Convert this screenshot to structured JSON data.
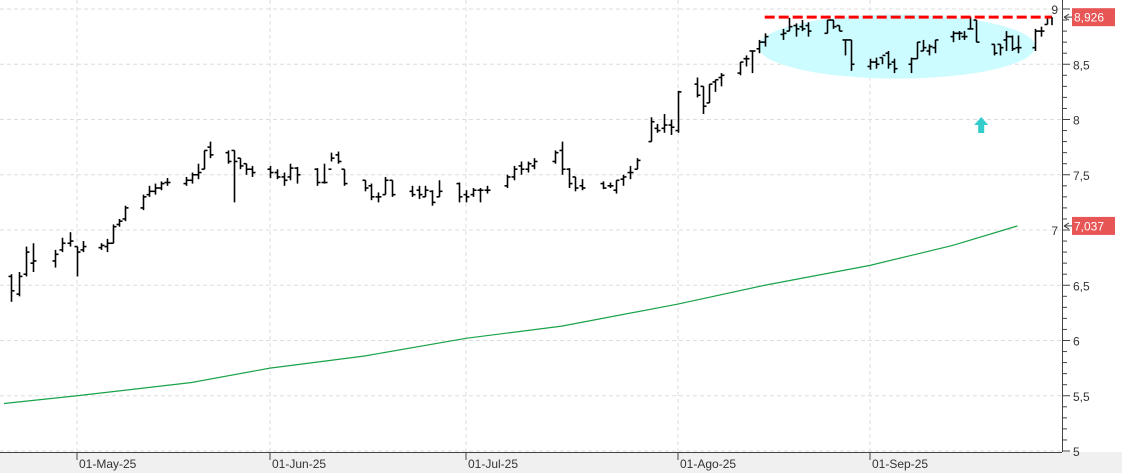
{
  "chart_data": {
    "type": "ohlc",
    "title": "",
    "xlabel": "",
    "ylabel": "",
    "ylim": [
      5,
      9
    ],
    "y_ticks": [
      "5",
      "5,5",
      "6",
      "6,5",
      "7",
      "7,5",
      "8",
      "8,5",
      "9"
    ],
    "x_ticks": [
      {
        "date": "2025-05-01",
        "label": "01-May-25"
      },
      {
        "date": "2025-06-02",
        "label": "01-Jun-25"
      },
      {
        "date": "2025-07-01",
        "label": "01-Jul-25"
      },
      {
        "date": "2025-08-01",
        "label": "01-Ago-25"
      },
      {
        "date": "2025-09-01",
        "label": "01-Sep-25"
      }
    ],
    "grid": true,
    "colors": {
      "bars": "#000000",
      "moving_average": "#1aa34a",
      "resistance": "#ff0000",
      "zone": "#ccfcff",
      "arrow": "#33cccc",
      "price_tag": "#e85555"
    },
    "price_tags": [
      {
        "value": 8.926,
        "label": "8,926"
      },
      {
        "value": 7.037,
        "label": "7,037"
      }
    ],
    "resistance_line": {
      "value": 8.926,
      "from": "2025-08-15",
      "to": "2025-09-26",
      "style": "dashed"
    },
    "consolidation_zone": {
      "from": "2025-08-14",
      "to": "2025-09-29",
      "high": 8.95,
      "low": 8.37
    },
    "arrow": {
      "date": "2025-09-19",
      "value": 7.95,
      "direction": "up"
    },
    "moving_average": [
      [
        "2025-04-21",
        5.43
      ],
      [
        "2025-05-01",
        5.5
      ],
      [
        "2025-05-20",
        5.62
      ],
      [
        "2025-06-02",
        5.75
      ],
      [
        "2025-06-16",
        5.86
      ],
      [
        "2025-07-01",
        6.02
      ],
      [
        "2025-07-15",
        6.13
      ],
      [
        "2025-08-01",
        6.33
      ],
      [
        "2025-08-15",
        6.5
      ],
      [
        "2025-09-01",
        6.68
      ],
      [
        "2025-09-15",
        6.86
      ],
      [
        "2025-09-26",
        7.037
      ]
    ],
    "bars": [
      [
        "2025-04-22",
        6.58,
        6.6,
        6.35,
        6.45
      ],
      [
        "2025-04-23",
        6.42,
        6.62,
        6.4,
        6.58
      ],
      [
        "2025-04-24",
        6.6,
        6.85,
        6.58,
        6.8
      ],
      [
        "2025-04-25",
        6.7,
        6.88,
        6.62,
        6.72
      ],
      [
        "2025-04-28",
        6.72,
        6.82,
        6.66,
        6.78
      ],
      [
        "2025-04-29",
        6.82,
        6.93,
        6.8,
        6.88
      ],
      [
        "2025-04-30",
        6.88,
        6.98,
        6.85,
        6.9
      ],
      [
        "2025-05-01",
        6.85,
        6.85,
        6.58,
        6.8
      ],
      [
        "2025-05-02",
        6.82,
        6.9,
        6.8,
        6.85
      ],
      [
        "2025-05-05",
        6.84,
        6.88,
        6.82,
        6.86
      ],
      [
        "2025-05-06",
        6.85,
        6.92,
        6.8,
        6.88
      ],
      [
        "2025-05-07",
        6.88,
        7.05,
        6.88,
        7.03
      ],
      [
        "2025-05-08",
        7.05,
        7.1,
        7.03,
        7.08
      ],
      [
        "2025-05-09",
        7.1,
        7.22,
        7.08,
        7.2
      ],
      [
        "2025-05-12",
        7.2,
        7.32,
        7.18,
        7.3
      ],
      [
        "2025-05-13",
        7.32,
        7.4,
        7.3,
        7.35
      ],
      [
        "2025-05-14",
        7.35,
        7.42,
        7.32,
        7.38
      ],
      [
        "2025-05-15",
        7.38,
        7.44,
        7.36,
        7.42
      ],
      [
        "2025-05-16",
        7.43,
        7.47,
        7.4,
        7.43
      ],
      [
        "2025-05-19",
        7.42,
        7.48,
        7.4,
        7.45
      ],
      [
        "2025-05-20",
        7.45,
        7.52,
        7.42,
        7.5
      ],
      [
        "2025-05-21",
        7.5,
        7.6,
        7.46,
        7.52
      ],
      [
        "2025-05-22",
        7.55,
        7.72,
        7.55,
        7.72
      ],
      [
        "2025-05-23",
        7.75,
        7.8,
        7.65,
        7.68
      ],
      [
        "2025-05-26",
        7.7,
        7.72,
        7.6,
        7.62
      ],
      [
        "2025-05-27",
        7.72,
        7.72,
        7.25,
        7.62
      ],
      [
        "2025-05-28",
        7.65,
        7.65,
        7.55,
        7.58
      ],
      [
        "2025-05-29",
        7.6,
        7.6,
        7.5,
        7.55
      ],
      [
        "2025-05-30",
        7.55,
        7.58,
        7.48,
        7.52
      ],
      [
        "2025-06-02",
        7.55,
        7.58,
        7.47,
        7.52
      ],
      [
        "2025-06-03",
        7.52,
        7.55,
        7.46,
        7.48
      ],
      [
        "2025-06-04",
        7.48,
        7.52,
        7.4,
        7.45
      ],
      [
        "2025-06-05",
        7.48,
        7.6,
        7.45,
        7.56
      ],
      [
        "2025-06-06",
        7.56,
        7.57,
        7.42,
        7.5
      ],
      [
        "2025-06-09",
        7.55,
        7.56,
        7.4,
        7.43
      ],
      [
        "2025-06-10",
        7.43,
        7.6,
        7.42,
        7.43
      ],
      [
        "2025-06-11",
        7.55,
        7.7,
        7.62,
        7.65
      ],
      [
        "2025-06-12",
        7.68,
        7.71,
        7.6,
        7.62
      ],
      [
        "2025-06-13",
        7.55,
        7.55,
        7.4,
        7.42
      ],
      [
        "2025-06-16",
        7.45,
        7.45,
        7.35,
        7.38
      ],
      [
        "2025-06-17",
        7.4,
        7.42,
        7.27,
        7.3
      ],
      [
        "2025-06-18",
        7.3,
        7.34,
        7.25,
        7.3
      ],
      [
        "2025-06-19",
        7.32,
        7.48,
        7.32,
        7.45
      ],
      [
        "2025-06-20",
        7.45,
        7.45,
        7.3,
        7.32
      ],
      [
        "2025-06-23",
        7.35,
        7.4,
        7.3,
        7.32
      ],
      [
        "2025-06-24",
        7.36,
        7.4,
        7.28,
        7.32
      ],
      [
        "2025-06-25",
        7.3,
        7.4,
        7.3,
        7.36
      ],
      [
        "2025-06-26",
        7.35,
        7.36,
        7.22,
        7.25
      ],
      [
        "2025-06-27",
        7.3,
        7.45,
        7.3,
        7.35
      ],
      [
        "2025-06-30",
        7.42,
        7.43,
        7.25,
        7.3
      ],
      [
        "2025-07-01",
        7.32,
        7.36,
        7.25,
        7.3
      ],
      [
        "2025-07-02",
        7.32,
        7.38,
        7.3,
        7.36
      ],
      [
        "2025-07-03",
        7.36,
        7.38,
        7.25,
        7.36
      ],
      [
        "2025-07-04",
        7.36,
        7.4,
        7.33,
        7.36
      ],
      [
        "2025-07-07",
        7.4,
        7.5,
        7.38,
        7.48
      ],
      [
        "2025-07-08",
        7.48,
        7.58,
        7.45,
        7.55
      ],
      [
        "2025-07-09",
        7.58,
        7.62,
        7.5,
        7.55
      ],
      [
        "2025-07-10",
        7.55,
        7.62,
        7.52,
        7.6
      ],
      [
        "2025-07-11",
        7.58,
        7.65,
        7.55,
        7.62
      ],
      [
        "2025-07-14",
        7.62,
        7.72,
        7.6,
        7.7
      ],
      [
        "2025-07-15",
        7.72,
        7.8,
        7.5,
        7.55
      ],
      [
        "2025-07-16",
        7.55,
        7.56,
        7.38,
        7.42
      ],
      [
        "2025-07-17",
        7.48,
        7.48,
        7.35,
        7.38
      ],
      [
        "2025-07-18",
        7.4,
        7.46,
        7.36,
        7.38
      ],
      [
        "2025-07-21",
        7.42,
        7.44,
        7.37,
        7.38
      ],
      [
        "2025-07-22",
        7.4,
        7.43,
        7.38,
        7.4
      ],
      [
        "2025-07-23",
        7.36,
        7.45,
        7.33,
        7.45
      ],
      [
        "2025-07-24",
        7.46,
        7.5,
        7.4,
        7.48
      ],
      [
        "2025-07-25",
        7.52,
        7.58,
        7.46,
        7.52
      ],
      [
        "2025-07-26",
        7.55,
        7.65,
        7.55,
        7.63
      ],
      [
        "2025-07-28",
        7.8,
        8.02,
        7.8,
        7.98
      ],
      [
        "2025-07-29",
        7.92,
        7.96,
        7.88,
        7.9
      ],
      [
        "2025-07-30",
        7.92,
        8.05,
        7.88,
        7.95
      ],
      [
        "2025-07-31",
        7.95,
        8.0,
        7.86,
        7.93
      ],
      [
        "2025-08-01",
        7.9,
        8.26,
        7.88,
        8.25
      ],
      [
        "2025-08-04",
        8.32,
        8.38,
        8.2,
        8.22
      ],
      [
        "2025-08-05",
        8.3,
        8.3,
        8.05,
        8.12
      ],
      [
        "2025-08-06",
        8.15,
        8.32,
        8.15,
        8.32
      ],
      [
        "2025-08-07",
        8.34,
        8.36,
        8.25,
        8.36
      ],
      [
        "2025-08-08",
        8.38,
        8.42,
        8.3,
        8.4
      ],
      [
        "2025-08-11",
        8.42,
        8.52,
        8.4,
        8.52
      ],
      [
        "2025-08-12",
        8.55,
        8.58,
        8.48,
        8.55
      ],
      [
        "2025-08-13",
        8.62,
        8.62,
        8.42,
        8.62
      ],
      [
        "2025-08-14",
        8.64,
        8.72,
        8.6,
        8.7
      ],
      [
        "2025-08-15",
        8.7,
        8.78,
        8.66,
        8.75
      ],
      [
        "2025-08-18",
        8.77,
        8.82,
        8.72,
        8.78
      ],
      [
        "2025-08-19",
        8.8,
        8.92,
        8.8,
        8.84
      ],
      [
        "2025-08-20",
        8.85,
        8.87,
        8.75,
        8.82
      ],
      [
        "2025-08-21",
        8.84,
        8.9,
        8.8,
        8.82
      ],
      [
        "2025-08-22",
        8.85,
        8.88,
        8.75,
        8.8
      ],
      [
        "2025-08-25",
        8.78,
        8.9,
        8.78,
        8.9
      ],
      [
        "2025-08-26",
        8.9,
        8.9,
        8.82,
        8.84
      ],
      [
        "2025-08-27",
        8.85,
        8.85,
        8.8,
        8.8
      ],
      [
        "2025-08-28",
        8.72,
        8.72,
        8.58,
        8.72
      ],
      [
        "2025-08-29",
        8.72,
        8.72,
        8.44,
        8.5
      ],
      [
        "2025-09-01",
        8.48,
        8.55,
        8.45,
        8.52
      ],
      [
        "2025-09-02",
        8.52,
        8.56,
        8.46,
        8.5
      ],
      [
        "2025-09-03",
        8.56,
        8.56,
        8.5,
        8.58
      ],
      [
        "2025-09-04",
        8.6,
        8.62,
        8.46,
        8.5
      ],
      [
        "2025-09-05",
        8.52,
        8.55,
        8.42,
        8.46
      ],
      [
        "2025-09-08",
        8.5,
        8.56,
        8.42,
        8.55
      ],
      [
        "2025-09-09",
        8.55,
        8.7,
        8.55,
        8.7
      ],
      [
        "2025-09-10",
        8.62,
        8.72,
        8.62,
        8.65
      ],
      [
        "2025-09-11",
        8.62,
        8.68,
        8.58,
        8.66
      ],
      [
        "2025-09-12",
        8.65,
        8.72,
        8.6,
        8.72
      ],
      [
        "2025-09-15",
        8.75,
        8.8,
        8.7,
        8.78
      ],
      [
        "2025-09-16",
        8.78,
        8.8,
        8.72,
        8.78
      ],
      [
        "2025-09-17",
        8.75,
        8.8,
        8.72,
        8.75
      ],
      [
        "2025-09-18",
        8.82,
        8.93,
        8.82,
        8.82
      ],
      [
        "2025-09-19",
        8.9,
        8.9,
        8.7,
        8.7
      ],
      [
        "2025-09-22",
        8.68,
        8.68,
        8.58,
        8.6
      ],
      [
        "2025-09-23",
        8.68,
        8.68,
        8.58,
        8.65
      ],
      [
        "2025-09-24",
        8.72,
        8.8,
        8.62,
        8.75
      ],
      [
        "2025-09-25",
        8.75,
        8.76,
        8.62,
        8.64
      ],
      [
        "2025-09-26",
        8.65,
        8.76,
        8.6,
        8.65
      ],
      [
        "2025-09-29",
        8.65,
        8.82,
        8.62,
        8.8
      ],
      [
        "2025-09-30",
        8.8,
        8.84,
        8.75,
        8.8
      ],
      [
        "2025-10-01",
        8.86,
        8.93,
        8.86,
        8.926
      ]
    ]
  }
}
